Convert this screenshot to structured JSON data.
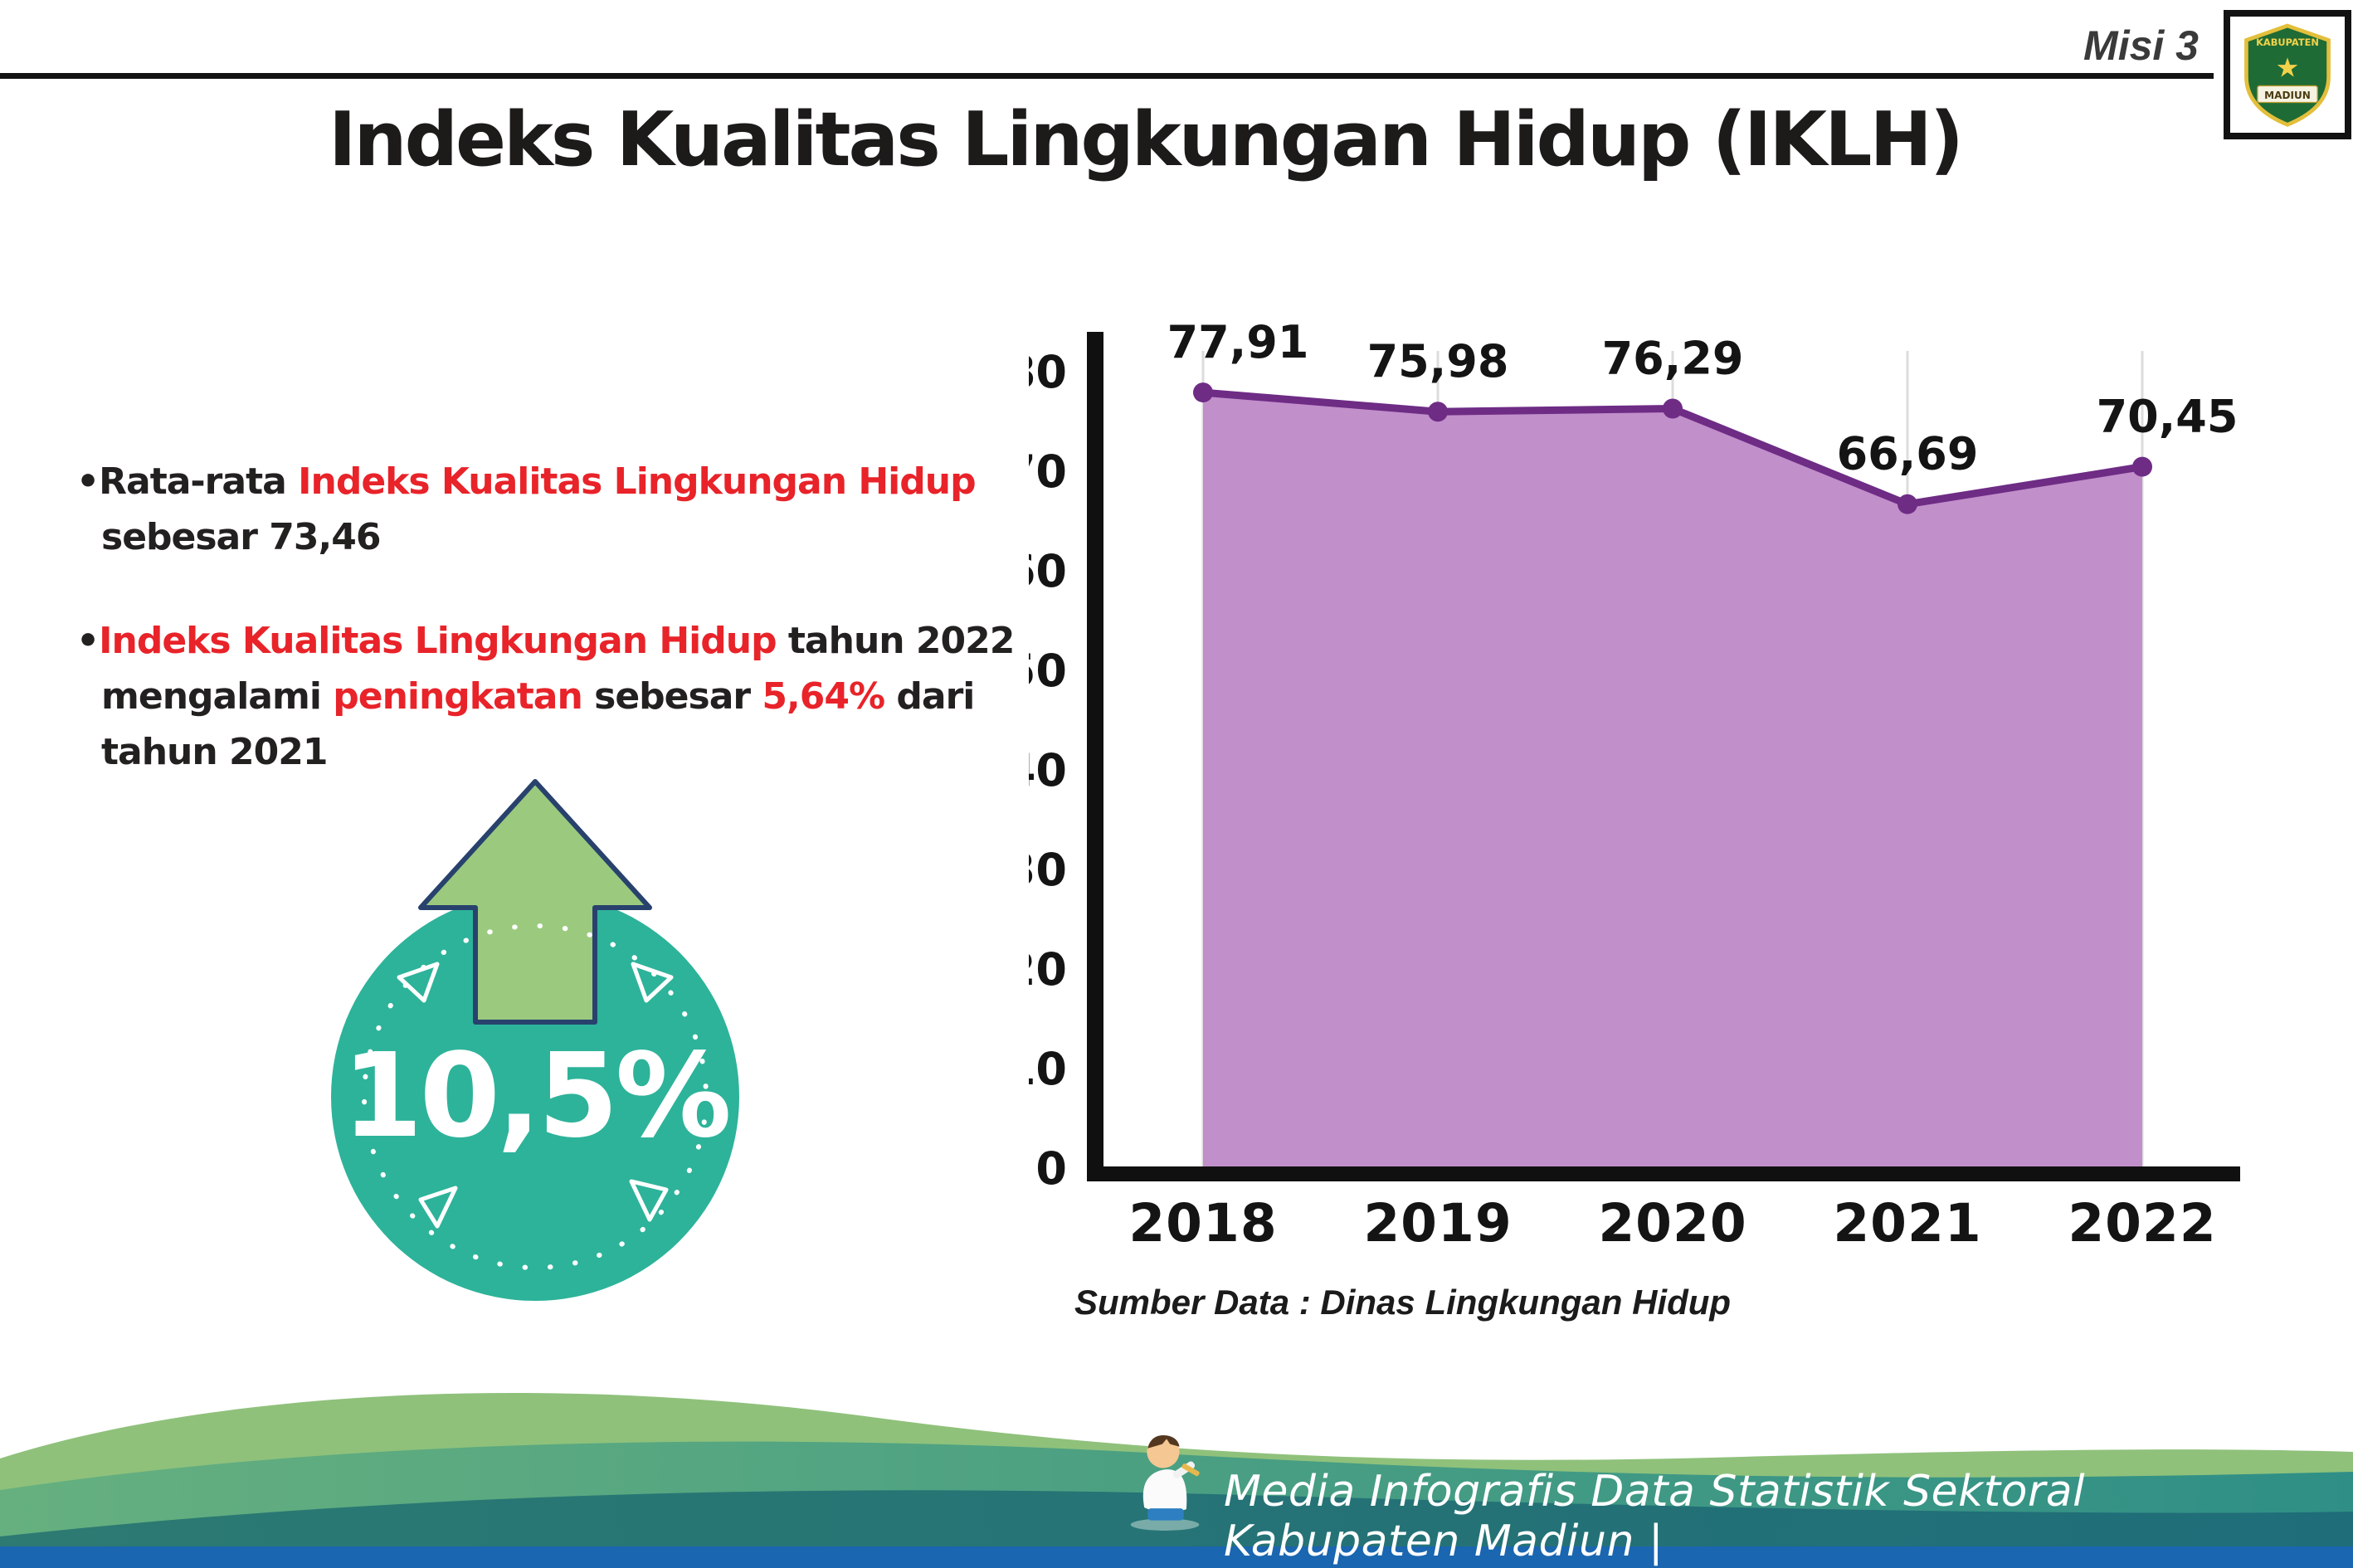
{
  "header": {
    "misi_label": "Misi 3",
    "title": "Indeks Kualitas Lingkungan Hidup (IKLH)",
    "logo": {
      "top_text": "KABUPATEN",
      "bottom_text": "MADIUN"
    }
  },
  "bullets": [
    {
      "segments": [
        {
          "text": "•Rata-rata ",
          "style": "black"
        },
        {
          "text": "Indeks Kualitas Lingkungan Hidup",
          "style": "red"
        },
        {
          "text": " sebesar 73,46",
          "style": "black"
        }
      ]
    },
    {
      "segments": [
        {
          "text": "•",
          "style": "black"
        },
        {
          "text": "Indeks Kualitas Lingkungan Hidup",
          "style": "red"
        },
        {
          "text": " tahun 2022 mengalami ",
          "style": "black"
        },
        {
          "text": "peningkatan",
          "style": "red"
        },
        {
          "text": " sebesar ",
          "style": "black"
        },
        {
          "text": "5,64%",
          "style": "red"
        },
        {
          "text": " dari tahun 2021",
          "style": "black"
        }
      ]
    }
  ],
  "badge": {
    "value": "10,5%"
  },
  "chart_data": {
    "type": "area",
    "title": "Indeks Kualitas Lingkungan Hidup (IKLH)",
    "categories": [
      "2018",
      "2019",
      "2020",
      "2021",
      "2022"
    ],
    "values": [
      77.91,
      75.98,
      76.29,
      66.69,
      70.45
    ],
    "value_labels": [
      "77,91",
      "75,98",
      "76,29",
      "66,69",
      "70,45"
    ],
    "xlabel": "",
    "ylabel": "",
    "ylim": [
      0,
      80
    ],
    "ytick_step": 10,
    "grid": "light-vertical",
    "legend": "none",
    "line_color": "#6e2c85",
    "fill_color": "#c18fca",
    "source": "Sumber Data : Dinas Lingkungan Hidup"
  },
  "footer": {
    "caption": "Media Infografis Data Statistik Sektoral Kabupaten Madiun |"
  },
  "colors": {
    "accent_red": "#e82329",
    "badge_teal": "#2db39a",
    "arrow_green": "#9bca7e",
    "footer_blue": "#1a66b0"
  }
}
